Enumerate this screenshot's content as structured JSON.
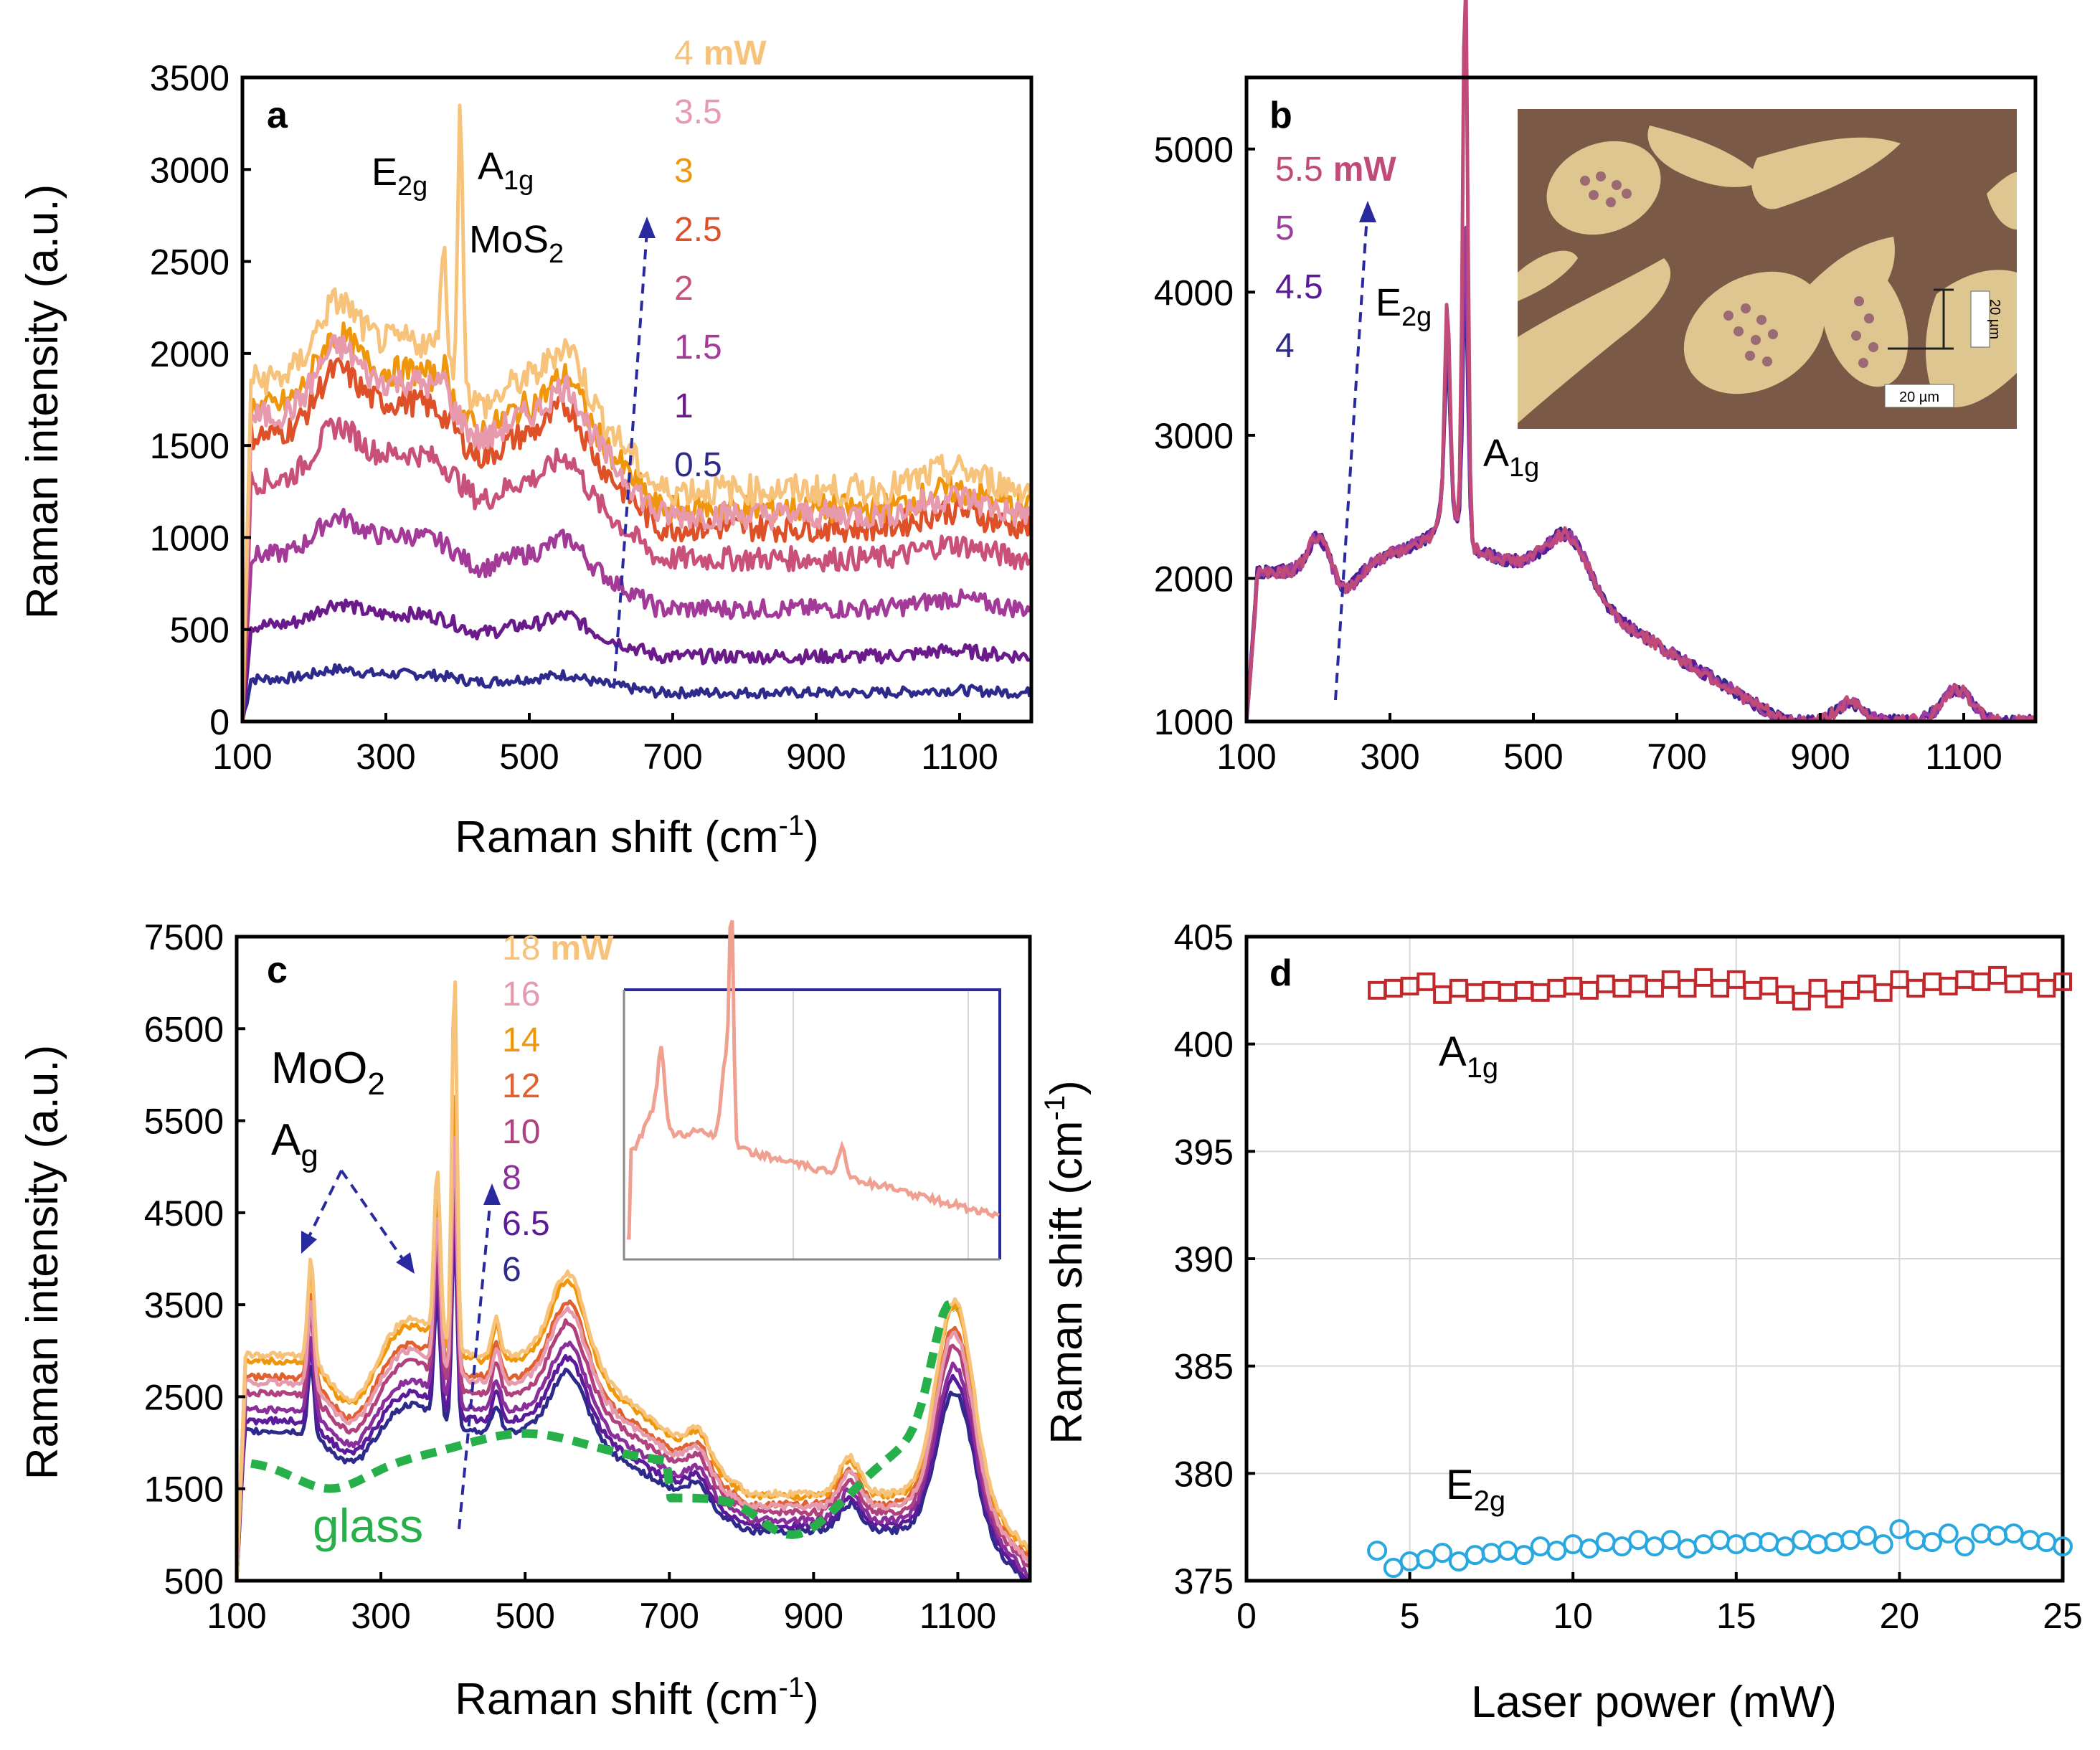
{
  "chart_data": [
    {
      "panel": "a",
      "type": "line",
      "xlabel": "Raman shift (cm",
      "xlabel_sup": "-1",
      "xlabel_end": ")",
      "ylabel": "Raman intensity (a.u.)",
      "xlim": [
        100,
        1200
      ],
      "ylim": [
        0,
        3500
      ],
      "xticks": [
        100,
        300,
        500,
        700,
        900,
        1100
      ],
      "yticks": [
        0,
        500,
        1000,
        1500,
        2000,
        2500,
        3000,
        3500
      ],
      "annotations": {
        "e2g": "E",
        "e2g_sub": "2g",
        "a1g": "A",
        "a1g_sub": "1g",
        "material": "MoS",
        "material_sub": "2",
        "unit": "mW"
      },
      "series": [
        {
          "name": "0.5",
          "color": "#2e2a8c",
          "baseline": 230,
          "scale": 0.03
        },
        {
          "name": "1",
          "color": "#6a1a8a",
          "baseline": 520,
          "scale": 0.07
        },
        {
          "name": "1.5",
          "color": "#a43a98",
          "baseline": 900,
          "scale": 0.12
        },
        {
          "name": "2",
          "color": "#c8507a",
          "baseline": 1300,
          "scale": 0.17
        },
        {
          "name": "2.5",
          "color": "#de5028",
          "baseline": 1550,
          "scale": 0.2
        },
        {
          "name": "3",
          "color": "#f0960a",
          "baseline": 1700,
          "scale": 0.2
        },
        {
          "name": "3.5",
          "color": "#e79aae",
          "baseline": 1650,
          "scale": 0.2
        },
        {
          "name": "4",
          "color": "#f7c27a",
          "baseline": 1850,
          "scale": 1.0
        }
      ]
    },
    {
      "panel": "b",
      "type": "line",
      "xlim": [
        100,
        1200
      ],
      "ylim": [
        1000,
        5500
      ],
      "xticks": [
        100,
        300,
        500,
        700,
        900,
        1100
      ],
      "yticks": [
        1000,
        2000,
        3000,
        4000,
        5000
      ],
      "annotations": {
        "e2g": "E",
        "e2g_sub": "2g",
        "a1g": "A",
        "a1g_sub": "1g",
        "unit": "mW",
        "scale_label": "20 µm"
      },
      "series": [
        {
          "name": "4",
          "color": "#2e2a8c"
        },
        {
          "name": "4.5",
          "color": "#5a1a9a"
        },
        {
          "name": "5",
          "color": "#9c3ea0"
        },
        {
          "name": "5.5",
          "color": "#c04a78"
        }
      ]
    },
    {
      "panel": "c",
      "type": "line",
      "xlabel": "Raman shift (cm",
      "xlabel_sup": "-1",
      "xlabel_end": ")",
      "ylabel": "Raman intensity (a.u.)",
      "xlim": [
        100,
        1200
      ],
      "ylim": [
        500,
        7500
      ],
      "xticks": [
        100,
        300,
        500,
        700,
        900,
        1100
      ],
      "yticks": [
        500,
        1500,
        2500,
        3500,
        4500,
        5500,
        6500,
        7500
      ],
      "annotations": {
        "material": "MoO",
        "material_sub": "2",
        "ag": "A",
        "ag_sub": "g",
        "glass": "glass",
        "unit": "mW"
      },
      "series": [
        {
          "name": "6",
          "color": "#2e2a8c",
          "scale": 0.72
        },
        {
          "name": "6.5",
          "color": "#5a1a9a",
          "scale": 0.76
        },
        {
          "name": "8",
          "color": "#8a2e9c",
          "scale": 0.8
        },
        {
          "name": "10",
          "color": "#b0407e",
          "scale": 0.86
        },
        {
          "name": "12",
          "color": "#e06030",
          "scale": 0.92
        },
        {
          "name": "14",
          "color": "#f0960a",
          "scale": 0.98
        },
        {
          "name": "16",
          "color": "#e79aae",
          "scale": 0.9
        },
        {
          "name": "18",
          "color": "#f7c27a",
          "scale": 1.0
        },
        {
          "name": "glass",
          "color": "#27b04a",
          "dashed": true
        }
      ]
    },
    {
      "panel": "d",
      "type": "scatter",
      "xlabel": "Laser power (mW)",
      "ylabel": "Raman shift (cm",
      "ylabel_sup": "-1",
      "ylabel_end": ")",
      "xlim": [
        0,
        25
      ],
      "ylim": [
        375,
        405
      ],
      "xticks": [
        0,
        5,
        10,
        15,
        20,
        25
      ],
      "yticks": [
        375,
        380,
        385,
        390,
        395,
        400,
        405
      ],
      "annotations": {
        "a1g": "A",
        "a1g_sub": "1g",
        "e2g": "E",
        "e2g_sub": "2g"
      },
      "series": [
        {
          "name": "A1g",
          "color": "#c0282c",
          "marker": "square",
          "x": [
            4,
            4.5,
            5,
            5.5,
            6,
            6.5,
            7,
            7.5,
            8,
            8.5,
            9,
            9.5,
            10,
            10.5,
            11,
            11.5,
            12,
            12.5,
            13,
            13.5,
            14,
            14.5,
            15,
            15.5,
            16,
            16.5,
            17,
            17.5,
            18,
            18.5,
            19,
            19.5,
            20,
            20.5,
            21,
            21.5,
            22,
            22.5,
            23,
            23.5,
            24,
            24.5,
            25
          ],
          "y": [
            402.5,
            402.6,
            402.7,
            402.9,
            402.3,
            402.6,
            402.4,
            402.5,
            402.4,
            402.5,
            402.4,
            402.6,
            402.7,
            402.5,
            402.8,
            402.6,
            402.8,
            402.6,
            403.0,
            402.6,
            403.1,
            402.6,
            403.0,
            402.5,
            402.7,
            402.3,
            402.0,
            402.6,
            402.1,
            402.5,
            402.8,
            402.4,
            403.0,
            402.6,
            402.9,
            402.7,
            403.0,
            402.9,
            403.2,
            402.8,
            402.9,
            402.6,
            402.9
          ]
        },
        {
          "name": "E2g",
          "color": "#29a8e0",
          "marker": "circle",
          "x": [
            4,
            4.5,
            5,
            5.5,
            6,
            6.5,
            7,
            7.5,
            8,
            8.5,
            9,
            9.5,
            10,
            10.5,
            11,
            11.5,
            12,
            12.5,
            13,
            13.5,
            14,
            14.5,
            15,
            15.5,
            16,
            16.5,
            17,
            17.5,
            18,
            18.5,
            19,
            19.5,
            20,
            20.5,
            21,
            21.5,
            22,
            22.5,
            23,
            23.5,
            24,
            24.5,
            25
          ],
          "y": [
            376.4,
            375.6,
            375.9,
            376.0,
            376.3,
            375.9,
            376.2,
            376.3,
            376.4,
            376.2,
            376.6,
            376.4,
            376.7,
            376.5,
            376.8,
            376.6,
            376.9,
            376.6,
            376.9,
            376.5,
            376.7,
            376.9,
            376.7,
            376.8,
            376.8,
            376.6,
            376.9,
            376.7,
            376.8,
            376.9,
            377.1,
            376.7,
            377.4,
            376.9,
            376.8,
            377.2,
            376.6,
            377.2,
            377.1,
            377.2,
            376.9,
            376.8,
            376.6
          ]
        }
      ]
    }
  ]
}
